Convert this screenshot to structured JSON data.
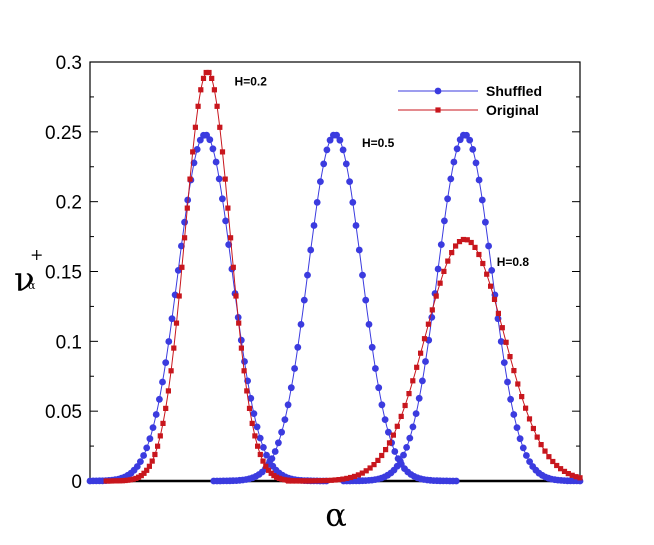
{
  "chart_data": {
    "type": "line",
    "title": "",
    "xlabel": "α",
    "ylabel": "ν",
    "ylabel_superscript": "+",
    "ylabel_subscript": "α",
    "xlim": [
      0,
      1
    ],
    "ylim": [
      0,
      0.3
    ],
    "y_ticks": [
      "0",
      "0.05",
      "0.1",
      "0.15",
      "0.2",
      "0.25",
      "0.3"
    ],
    "grid": false,
    "legend_position": "top-right",
    "colors": {
      "shuffled": "#3b3bdf",
      "original": "#c8161d"
    },
    "series": [
      {
        "name": "Shuffled",
        "marker": "circle",
        "peaks": [
          {
            "center": 0.235,
            "height": 0.248,
            "width": 0.055
          },
          {
            "center": 0.5,
            "height": 0.248,
            "width": 0.055
          },
          {
            "center": 0.765,
            "height": 0.248,
            "width": 0.055
          }
        ]
      },
      {
        "name": "Original",
        "marker": "square",
        "peaks": [
          {
            "center": 0.24,
            "height": 0.293,
            "width": 0.046
          },
          {
            "center": 0.765,
            "height": 0.173,
            "width": 0.08
          }
        ]
      }
    ],
    "annotations": [
      {
        "text": "H=0.2",
        "x": 0.295,
        "y": 0.283
      },
      {
        "text": "H=0.5",
        "x": 0.555,
        "y": 0.239
      },
      {
        "text": "H=0.8",
        "x": 0.83,
        "y": 0.154
      }
    ]
  }
}
